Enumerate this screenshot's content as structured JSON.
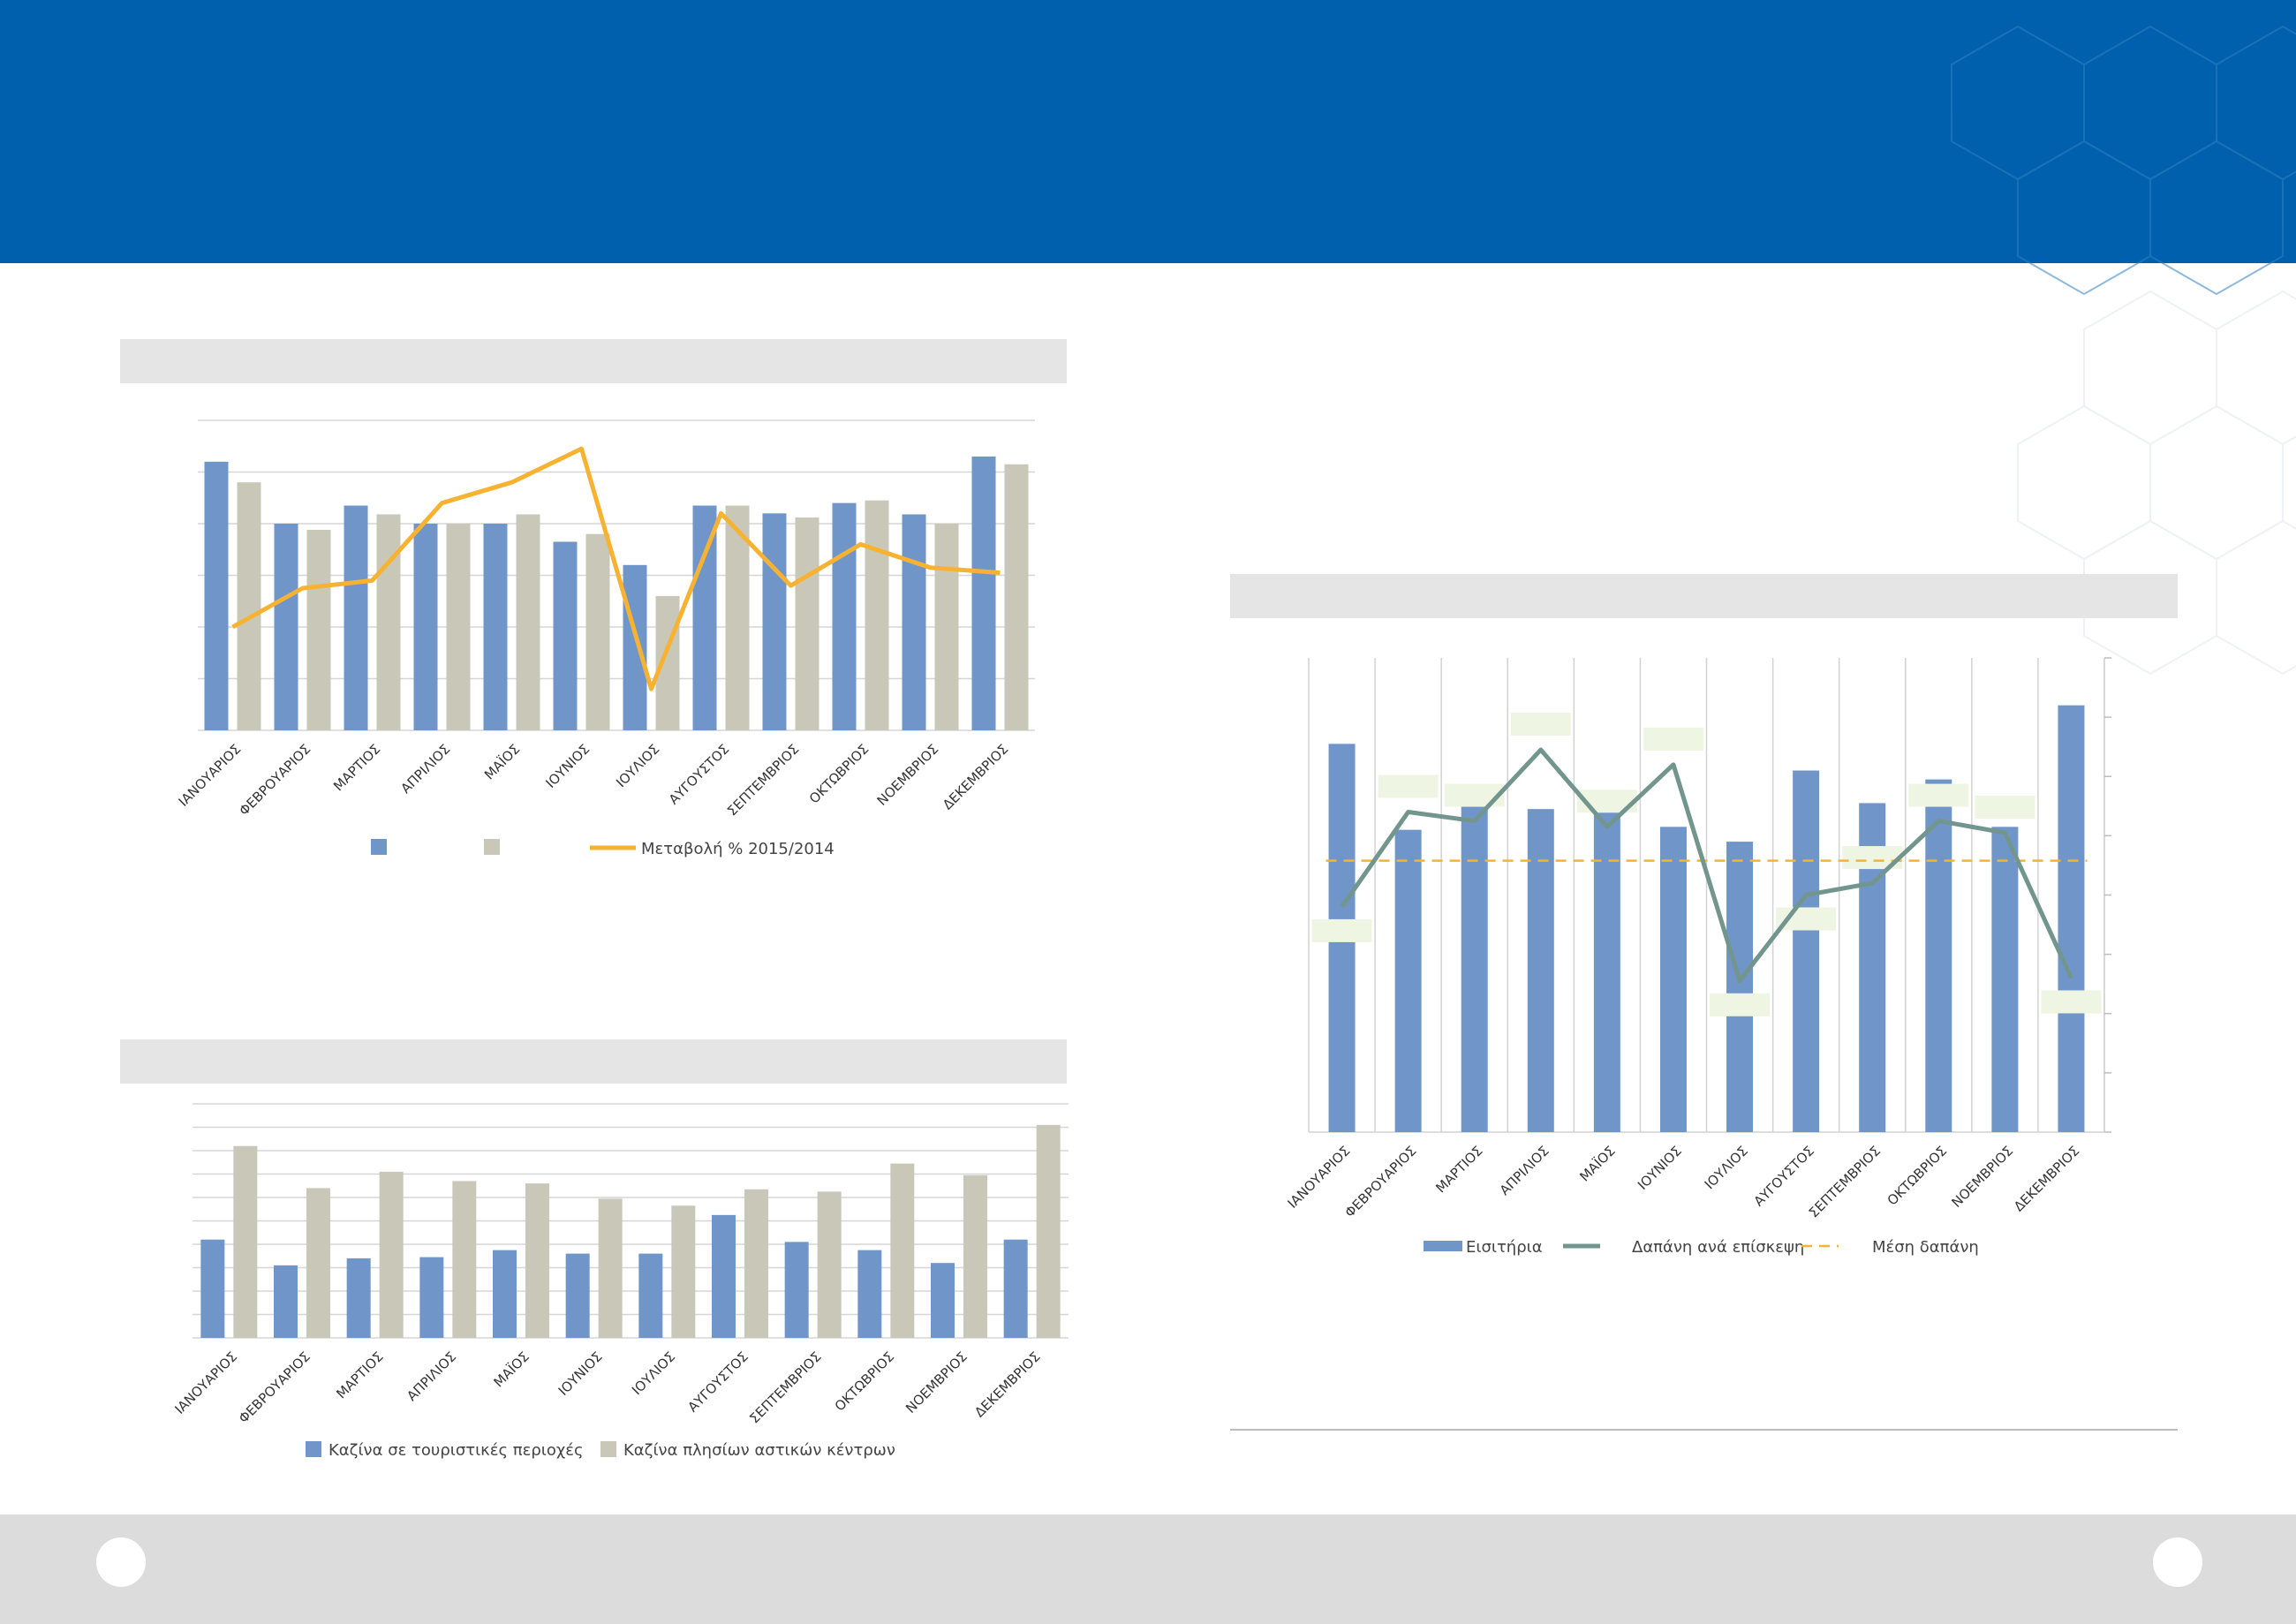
{
  "colors": {
    "header": "#0060ae",
    "bar_blue": "#7096c9",
    "bar_gray": "#c9c8b8",
    "line_orange": "#f8b232",
    "line_teal": "#72958e",
    "avg_dash": "#f8b232",
    "label_box": "#eef5e2"
  },
  "chart_data": [
    {
      "type": "bar",
      "categories": [
        "ΙΑΝΟΥΑΡΙΟΣ",
        "ΦΕΒΡΟΥΑΡΙΟΣ",
        "ΜΑΡΤΙΟΣ",
        "ΑΠΡΙΛΙΟΣ",
        "ΜΑΪΟΣ",
        "ΙΟΥΝΙΟΣ",
        "ΙΟΥΛΙΟΣ",
        "ΑΥΓΟΥΣΤΟΣ",
        "ΣΕΠΤΕΜΒΡΙΟΣ",
        "ΟΚΤΩΒΡΙΟΣ",
        "ΝΟΕΜΒΡΙΟΣ",
        "ΔΕΚΕΜΒΡΙΟΣ"
      ],
      "series": [
        {
          "values": [
            5.2,
            4.0,
            4.35,
            4.0,
            4.0,
            3.65,
            3.2,
            4.35,
            4.2,
            4.4,
            4.18,
            5.3
          ]
        },
        {
          "values": [
            4.8,
            3.88,
            4.18,
            4.0,
            4.18,
            3.8,
            2.6,
            4.35,
            4.12,
            4.45,
            4.0,
            5.15
          ]
        },
        {
          "name": "Μεταβολή % 2015/2014",
          "type": "line",
          "values": [
            2.0,
            2.75,
            2.9,
            4.4,
            4.8,
            5.45,
            0.8,
            4.2,
            2.8,
            3.6,
            3.15,
            3.05
          ]
        }
      ],
      "ylim": [
        0,
        6
      ],
      "grid": true,
      "legend": "bottom"
    },
    {
      "type": "bar",
      "categories": [
        "ΙΑΝΟΥΑΡΙΟΣ",
        "ΦΕΒΡΟΥΑΡΙΟΣ",
        "ΜΑΡΤΙΟΣ",
        "ΑΠΡΙΛΙΟΣ",
        "ΜΑΪΟΣ",
        "ΙΟΥΝΙΟΣ",
        "ΙΟΥΛΙΟΣ",
        "ΑΥΓΟΥΣΤΟΣ",
        "ΣΕΠΤΕΜΒΡΙΟΣ",
        "ΟΚΤΩΒΡΙΟΣ",
        "ΝΟΕΜΒΡΙΟΣ",
        "ΔΕΚΕΜΒΡΙΟΣ"
      ],
      "series": [
        {
          "name": "Καζίνα σε τουριστικές περιοχές",
          "values": [
            4.2,
            3.1,
            3.4,
            3.45,
            3.75,
            3.6,
            3.6,
            5.25,
            4.1,
            3.75,
            3.2,
            4.2
          ]
        },
        {
          "name": "Καζίνα πλησίων αστικών κέντρων",
          "values": [
            8.2,
            6.4,
            7.1,
            6.7,
            6.6,
            5.95,
            5.65,
            6.35,
            6.25,
            7.45,
            6.95,
            9.1
          ]
        }
      ],
      "ylim": [
        0,
        10
      ],
      "grid": true,
      "legend": "bottom"
    },
    {
      "type": "bar",
      "categories": [
        "ΙΑΝΟΥΑΡΙΟΣ",
        "ΦΕΒΡΟΥΑΡΙΟΣ",
        "ΜΑΡΤΙΟΣ",
        "ΑΠΡΙΛΙΟΣ",
        "ΜΑΪΟΣ",
        "ΙΟΥΝΙΟΣ",
        "ΙΟΥΛΙΟΣ",
        "ΑΥΓΟΥΣΤΟΣ",
        "ΣΕΠΤΕΜΒΡΙΟΣ",
        "ΟΚΤΩΒΡΙΟΣ",
        "ΝΟΕΜΒΡΙΟΣ",
        "ΔΕΚΕΜΒΡΙΟΣ"
      ],
      "series": [
        {
          "name": "Εισιτήρια",
          "type": "bar",
          "values": [
            6.55,
            5.1,
            5.65,
            5.45,
            5.65,
            5.15,
            4.9,
            6.1,
            5.55,
            5.95,
            5.15,
            7.2
          ]
        },
        {
          "name": "Δαπάνη ανά επίσκεψη",
          "type": "line",
          "values": [
            3.8,
            5.4,
            5.25,
            6.45,
            5.15,
            6.2,
            2.55,
            4.0,
            4.2,
            5.25,
            5.05,
            2.6
          ]
        },
        {
          "name": "Μέση  δαπάνη",
          "type": "line",
          "style": "dashed",
          "values": [
            4.58,
            4.58,
            4.58,
            4.58,
            4.58,
            4.58,
            4.58,
            4.58,
            4.58,
            4.58,
            4.58,
            4.58
          ]
        }
      ],
      "ylim": [
        0,
        8
      ],
      "grid": true,
      "legend": "bottom"
    }
  ]
}
